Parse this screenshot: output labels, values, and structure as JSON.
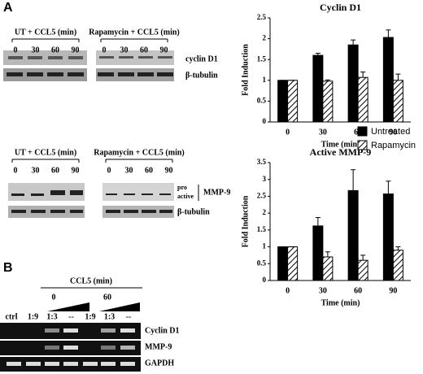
{
  "panel_labels": [
    "A",
    "B"
  ],
  "blots": {
    "groups": [
      {
        "title": "UT + CCL5 (min)",
        "lanes": [
          "0",
          "30",
          "60",
          "90"
        ]
      },
      {
        "title": "Rapamycin + CCL5 (min)",
        "lanes": [
          "0",
          "30",
          "60",
          "90"
        ]
      },
      {
        "title": "UT + CCL5 (min)",
        "lanes": [
          "0",
          "30",
          "60",
          "90"
        ]
      },
      {
        "title": "Rapamycin + CCL5 (min)",
        "lanes": [
          "0",
          "30",
          "60",
          "90"
        ]
      }
    ],
    "labels": [
      "cyclin D1",
      "β-tubulin",
      "pro",
      "active",
      "MMP-9",
      "β-tubulin"
    ]
  },
  "gel": {
    "title": "CCL5 (min)",
    "times": [
      "0",
      "60"
    ],
    "lanes": [
      "ctrl",
      "1:9",
      "1:3",
      "--",
      "1:9",
      "1:3",
      "--"
    ],
    "rows": [
      "Cyclin D1",
      "MMP-9",
      "GAPDH"
    ]
  },
  "chart_data": [
    {
      "type": "bar",
      "title": "Cyclin D1",
      "x_label": "Time (min)",
      "y_label": "Fold Induction",
      "categories": [
        "0",
        "30",
        "60",
        "90"
      ],
      "series": [
        {
          "name": "Untreated",
          "color": "#000000",
          "values": [
            1,
            1.6,
            1.85,
            2.03
          ],
          "errors": [
            0,
            0.05,
            0.12,
            0.18
          ]
        },
        {
          "name": "Rapamycin",
          "color": "#000000",
          "hatch": true,
          "values": [
            1,
            0.98,
            1.07,
            1.0
          ],
          "errors": [
            0,
            0.03,
            0.13,
            0.15
          ]
        }
      ],
      "ylim": [
        0,
        2.5
      ],
      "yticks": [
        0,
        0.5,
        1,
        1.5,
        2,
        2.5
      ],
      "legend": "below-right"
    },
    {
      "type": "bar",
      "title": "Active MMP-9",
      "x_label": "Time (min)",
      "y_label": "Fold Induction",
      "categories": [
        "0",
        "30",
        "60",
        "90"
      ],
      "series": [
        {
          "color": "#000000",
          "values": [
            1,
            1.62,
            2.67,
            2.57
          ],
          "errors": [
            0,
            0.25,
            0.62,
            0.38
          ]
        },
        {
          "color": "#000000",
          "hatch": true,
          "values": [
            1,
            0.7,
            0.6,
            0.9
          ],
          "errors": [
            0,
            0.15,
            0.15,
            0.1
          ]
        }
      ],
      "ylim": [
        0,
        3.5
      ],
      "yticks": [
        0,
        0.5,
        1,
        1.5,
        2,
        2.5,
        3,
        3.5
      ]
    }
  ]
}
